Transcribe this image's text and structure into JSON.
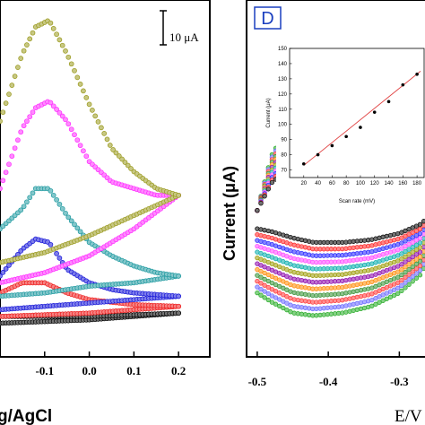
{
  "chart_data": [
    {
      "panel": "left",
      "type": "scatter",
      "xlabel": "g/AgCl",
      "x_ticks": [
        "-0.1",
        "0.0",
        "0.1",
        "0.2"
      ],
      "x_tick_values": [
        -0.1,
        0.0,
        0.1,
        0.2
      ],
      "xlim": [
        -0.2,
        0.27
      ],
      "ylim": [
        -10,
        96
      ],
      "scale_bar_label": "10 μA",
      "series": [
        {
          "color": "#9a9a1e",
          "forward": [
            [
              -0.2,
              60
            ],
            [
              -0.15,
              80
            ],
            [
              -0.12,
              88
            ],
            [
              -0.09,
              90
            ],
            [
              -0.05,
              80
            ],
            [
              0.0,
              65
            ],
            [
              0.05,
              52
            ],
            [
              0.1,
              45
            ],
            [
              0.15,
              40
            ],
            [
              0.2,
              38
            ]
          ],
          "reverse": [
            [
              -0.2,
              18
            ],
            [
              -0.1,
              21
            ],
            [
              0.0,
              26
            ],
            [
              0.1,
              32
            ],
            [
              0.2,
              38
            ]
          ]
        },
        {
          "color": "#ff2aff",
          "forward": [
            [
              -0.2,
              40
            ],
            [
              -0.15,
              58
            ],
            [
              -0.12,
              64
            ],
            [
              -0.09,
              66
            ],
            [
              -0.05,
              60
            ],
            [
              0.0,
              48
            ],
            [
              0.05,
              42
            ],
            [
              0.1,
              40
            ],
            [
              0.15,
              38
            ],
            [
              0.2,
              38
            ]
          ],
          "reverse": [
            [
              -0.2,
              12
            ],
            [
              -0.1,
              15
            ],
            [
              0.0,
              20
            ],
            [
              0.1,
              28
            ],
            [
              0.2,
              38
            ]
          ]
        },
        {
          "color": "#1f9aa0",
          "forward": [
            [
              -0.2,
              28
            ],
            [
              -0.15,
              34
            ],
            [
              -0.12,
              40
            ],
            [
              -0.09,
              40
            ],
            [
              -0.05,
              32
            ],
            [
              0.0,
              24
            ],
            [
              0.05,
              20
            ],
            [
              0.1,
              17
            ],
            [
              0.15,
              15
            ],
            [
              0.2,
              14
            ]
          ],
          "reverse": [
            [
              -0.2,
              8
            ],
            [
              -0.1,
              9
            ],
            [
              0.0,
              11
            ],
            [
              0.1,
              12
            ],
            [
              0.2,
              14
            ]
          ]
        },
        {
          "color": "#1616d8",
          "forward": [
            [
              -0.2,
              14
            ],
            [
              -0.15,
              22
            ],
            [
              -0.12,
              25
            ],
            [
              -0.09,
              24
            ],
            [
              -0.05,
              16
            ],
            [
              0.0,
              12
            ],
            [
              0.05,
              10
            ],
            [
              0.1,
              9
            ],
            [
              0.15,
              8.5
            ],
            [
              0.2,
              8
            ]
          ],
          "reverse": [
            [
              -0.2,
              4
            ],
            [
              -0.1,
              5
            ],
            [
              0.0,
              6
            ],
            [
              0.1,
              7
            ],
            [
              0.2,
              8
            ]
          ]
        },
        {
          "color": "#ee1b1b",
          "forward": [
            [
              -0.2,
              9
            ],
            [
              -0.15,
              12
            ],
            [
              -0.1,
              12
            ],
            [
              -0.05,
              9
            ],
            [
              0.0,
              7
            ],
            [
              0.1,
              5.5
            ],
            [
              0.2,
              5
            ]
          ],
          "reverse": [
            [
              -0.2,
              2
            ],
            [
              -0.1,
              2.5
            ],
            [
              0.0,
              3
            ],
            [
              0.1,
              4
            ],
            [
              0.2,
              5
            ]
          ]
        },
        {
          "color": "#000000",
          "forward": [
            [
              -0.2,
              2
            ],
            [
              -0.1,
              2
            ],
            [
              0.0,
              2
            ],
            [
              0.1,
              2.5
            ],
            [
              0.2,
              3
            ]
          ],
          "reverse": [
            [
              -0.2,
              0
            ],
            [
              -0.1,
              0.5
            ],
            [
              0.0,
              1
            ],
            [
              0.1,
              2
            ],
            [
              0.2,
              3
            ]
          ]
        }
      ]
    },
    {
      "panel": "right",
      "type": "scatter",
      "panel_label": "D",
      "ylabel": "Current (μA)",
      "xlabel": "E/V",
      "x_ticks": [
        "-0.5",
        "-0.4",
        "-0.3"
      ],
      "x_tick_values": [
        -0.5,
        -0.4,
        -0.3
      ],
      "xlim": [
        -0.515,
        -0.25
      ],
      "ylim": [
        -16,
        23
      ],
      "series_colors": [
        "#000000",
        "#ff2222",
        "#2222ff",
        "#ff44ff",
        "#00aaaa",
        "#999900",
        "#8800aa",
        "#ff8800",
        "#2f8f2f",
        "#ff3333",
        "#6666ff",
        "#22aa22"
      ],
      "top_branch": {
        "x": [
          -0.5,
          -0.48,
          -0.45,
          -0.42,
          -0.38,
          -0.34,
          -0.3,
          -0.27,
          -0.25
        ],
        "inner": [
          0,
          3,
          5,
          6,
          6.3,
          6.2,
          6,
          6.5,
          7.5
        ],
        "outer": [
          0,
          6,
          10,
          12,
          13,
          13,
          12.5,
          14,
          16
        ]
      },
      "bottom_branch": {
        "x": [
          -0.5,
          -0.48,
          -0.45,
          -0.42,
          -0.38,
          -0.34,
          -0.3,
          -0.27,
          -0.25
        ],
        "inner": [
          -2,
          -2.3,
          -3,
          -3.5,
          -3.5,
          -3.2,
          -2.5,
          -1.5,
          0
        ],
        "outer": [
          -9,
          -10,
          -11.2,
          -11.5,
          -11.2,
          -10.5,
          -9,
          -7,
          -4
        ]
      },
      "inset": {
        "type": "scatter",
        "xlabel": "Scan rate (mV)",
        "ylabel": "Current (μA)",
        "x_ticks": [
          "20",
          "40",
          "60",
          "80",
          "100",
          "120",
          "140",
          "160",
          "180"
        ],
        "y_ticks": [
          "70",
          "80",
          "90",
          "100",
          "110",
          "120",
          "130",
          "140",
          "150"
        ],
        "xlim": [
          0,
          190
        ],
        "ylim": [
          65,
          150
        ],
        "x": [
          20,
          40,
          60,
          80,
          100,
          120,
          140,
          160,
          180
        ],
        "y": [
          74,
          80,
          86,
          92,
          98,
          108,
          115,
          126,
          133
        ],
        "fit_line": {
          "x": [
            20,
            185
          ],
          "y": [
            73,
            135
          ],
          "color": "#e04040"
        }
      }
    }
  ]
}
